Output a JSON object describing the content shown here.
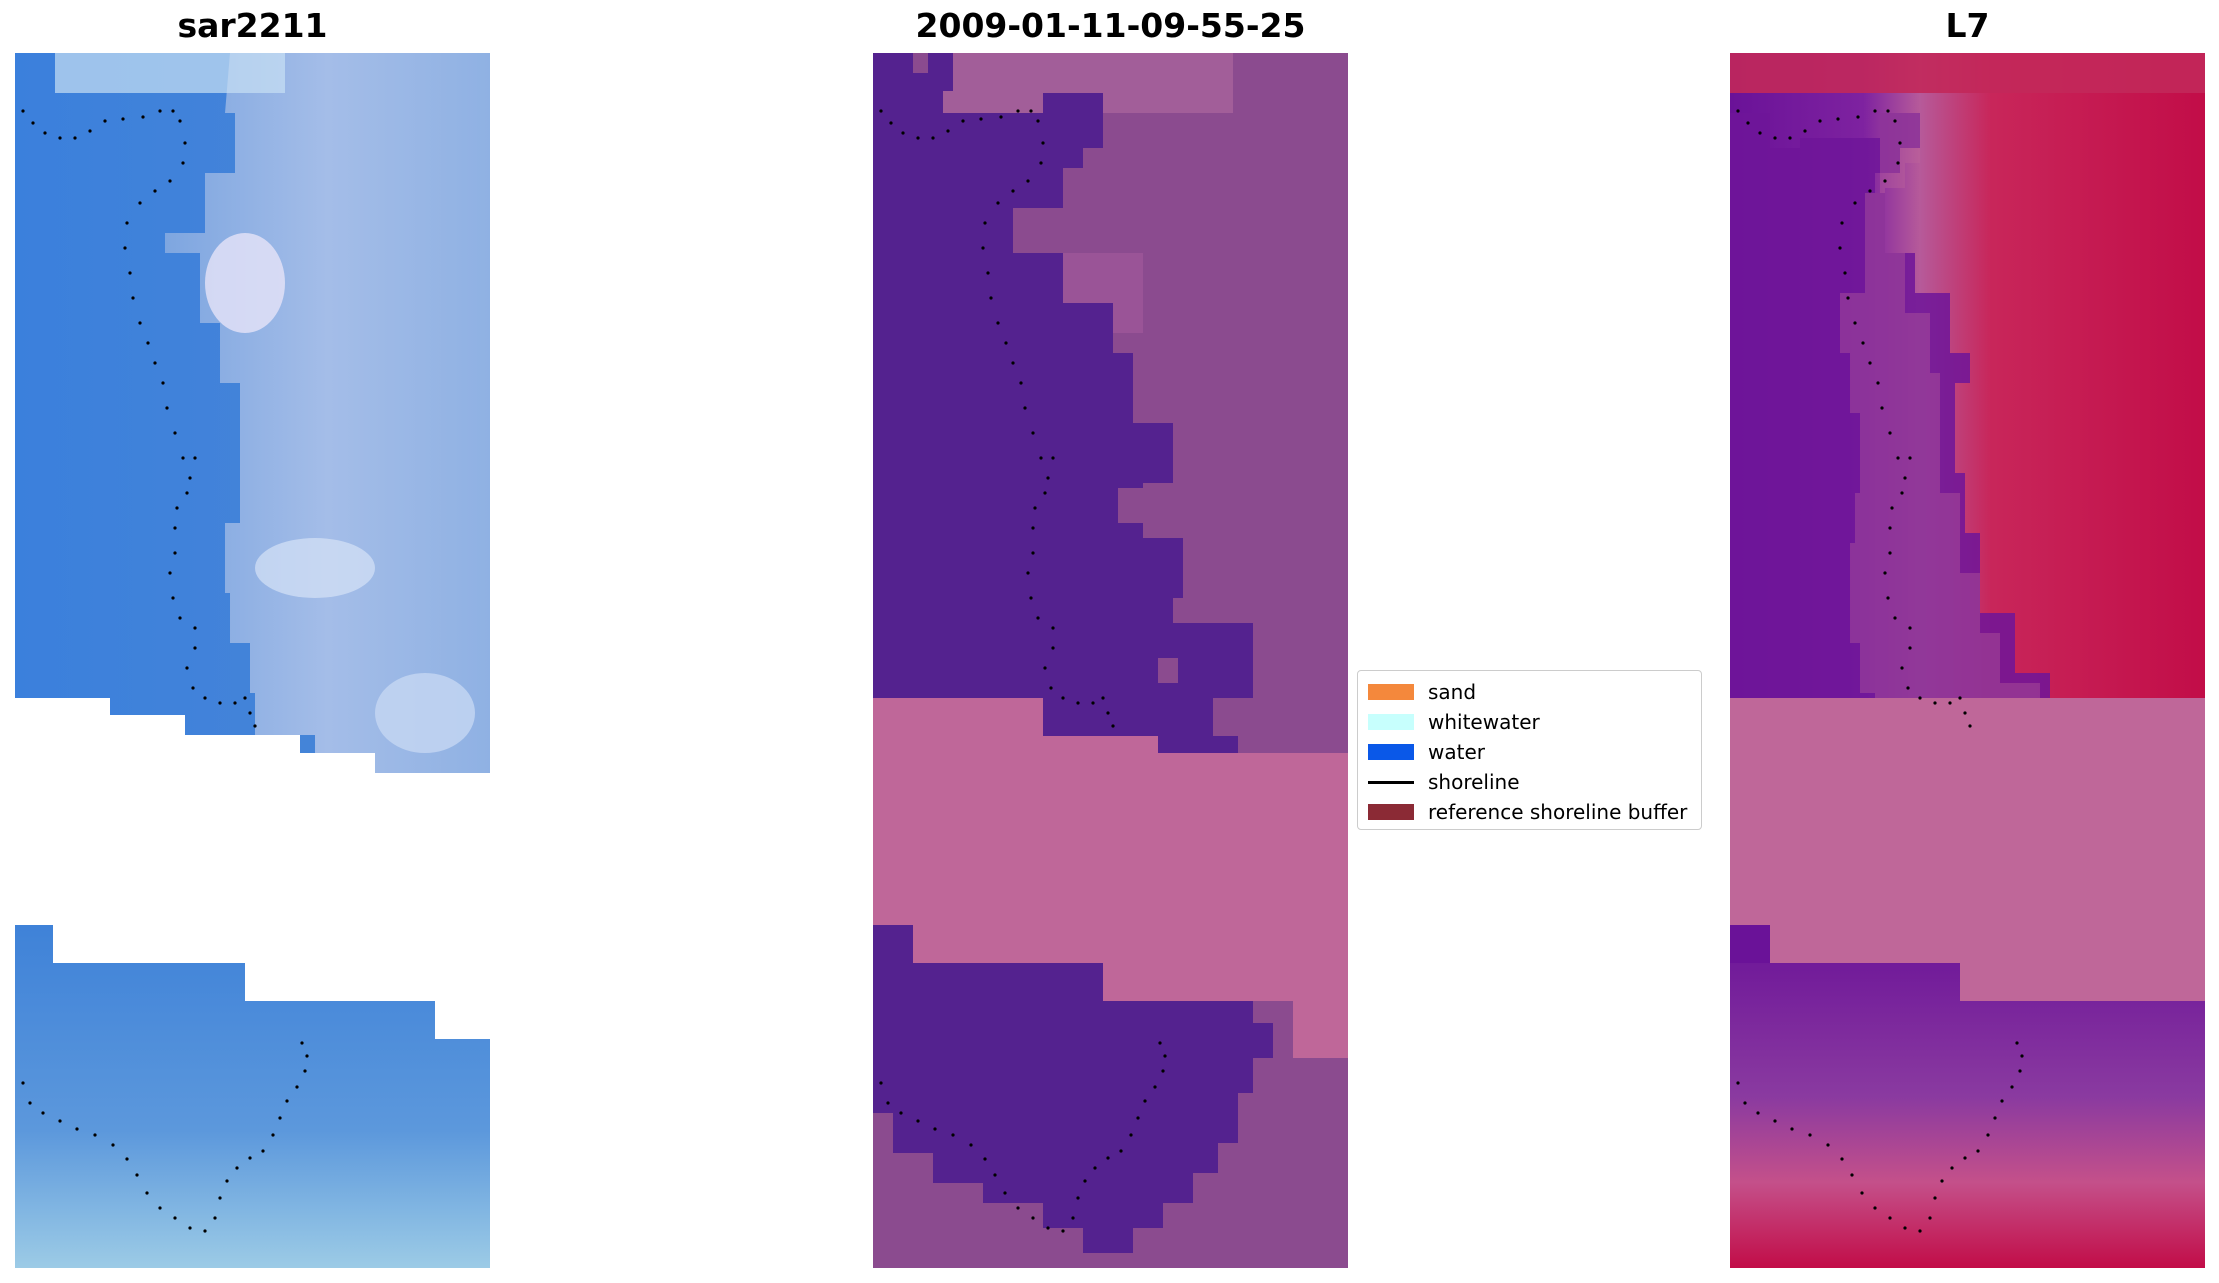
{
  "panels": [
    {
      "title": "sar2211",
      "type": "rgb"
    },
    {
      "title": "2009-01-11-09-55-25",
      "type": "classification"
    },
    {
      "title": "L7",
      "type": "index"
    }
  ],
  "legend": {
    "items": [
      {
        "label": "sand",
        "color": "#f4883c",
        "kind": "patch"
      },
      {
        "label": "whitewater",
        "color": "#c7fffd",
        "kind": "patch"
      },
      {
        "label": "water",
        "color": "#0a58e8",
        "kind": "patch"
      },
      {
        "label": "shoreline",
        "color": "#000000",
        "kind": "line"
      },
      {
        "label": "reference shoreline buffer",
        "color": "#8b2a35",
        "kind": "patch"
      }
    ]
  },
  "colors": {
    "rgb_water": "#3f7fd6",
    "rgb_land": "#93b2e4",
    "class_water": "#54228f",
    "class_land": "#8b4b8f",
    "class_buffer": "#bf6799",
    "index_water": "#6a1298",
    "index_land": "#c20d48",
    "index_mid": "#b04b8e"
  }
}
